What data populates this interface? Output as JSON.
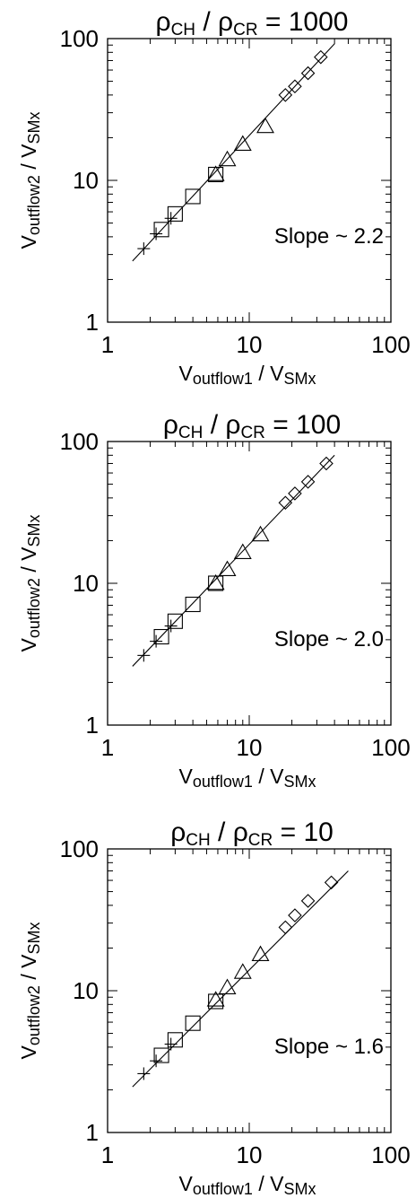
{
  "chart_data": [
    {
      "type": "scatter",
      "title": {
        "prefix": "ρ",
        "sub1": "CH",
        "mid": " / ρ",
        "sub2": "CR",
        "suffix": " = 1000"
      },
      "xlabel": {
        "main": "V",
        "sub1": "outflow1",
        "mid": "  / V",
        "sub2": "SMx"
      },
      "ylabel": {
        "main": "V",
        "sub1": "outflow2",
        "mid": " / V",
        "sub2": "SMx"
      },
      "x_scale": "log",
      "y_scale": "log",
      "xlim": [
        1,
        100
      ],
      "ylim": [
        1,
        100
      ],
      "x_ticks": [
        "1",
        "10",
        "100"
      ],
      "y_ticks": [
        "1",
        "10",
        "100"
      ],
      "annotation": "Slope ~ 2.2",
      "fit_line": {
        "x": [
          1.5,
          40
        ],
        "y": [
          2.7,
          92
        ]
      },
      "series": [
        {
          "marker": "plus",
          "x": [
            1.8,
            2.2,
            2.8
          ],
          "y": [
            3.3,
            4.2,
            5.4
          ]
        },
        {
          "marker": "square",
          "x": [
            2.4,
            3.0,
            4.0,
            5.8
          ],
          "y": [
            4.5,
            5.8,
            7.7,
            11.0
          ]
        },
        {
          "marker": "triangle",
          "x": [
            5.8,
            7.0,
            9.0,
            13.0
          ],
          "y": [
            11.0,
            14.0,
            18.0,
            24.0
          ]
        },
        {
          "marker": "diamond",
          "x": [
            18,
            21,
            26,
            32
          ],
          "y": [
            40,
            46,
            57,
            74
          ]
        }
      ]
    },
    {
      "type": "scatter",
      "title": {
        "prefix": "ρ",
        "sub1": "CH",
        "mid": " / ρ",
        "sub2": "CR",
        "suffix": " = 100"
      },
      "xlabel": {
        "main": "V",
        "sub1": "outflow1",
        "mid": "  / V",
        "sub2": "SMx"
      },
      "ylabel": {
        "main": "V",
        "sub1": "outflow2",
        "mid": " / V",
        "sub2": "SMx"
      },
      "x_scale": "log",
      "y_scale": "log",
      "xlim": [
        1,
        100
      ],
      "ylim": [
        1,
        100
      ],
      "x_ticks": [
        "1",
        "10",
        "100"
      ],
      "y_ticks": [
        "1",
        "10",
        "100"
      ],
      "annotation": "Slope ~ 2.0",
      "fit_line": {
        "x": [
          1.5,
          40
        ],
        "y": [
          2.6,
          80
        ]
      },
      "series": [
        {
          "marker": "plus",
          "x": [
            1.8,
            2.2,
            2.8
          ],
          "y": [
            3.1,
            3.9,
            5.0
          ]
        },
        {
          "marker": "square",
          "x": [
            2.4,
            3.0,
            4.0,
            5.8
          ],
          "y": [
            4.2,
            5.4,
            7.1,
            10.0
          ]
        },
        {
          "marker": "triangle",
          "x": [
            5.8,
            7.0,
            9.0,
            12.0
          ],
          "y": [
            10.0,
            12.5,
            16.5,
            22.0
          ]
        },
        {
          "marker": "diamond",
          "x": [
            18,
            21,
            26,
            35
          ],
          "y": [
            37,
            43,
            52,
            70
          ]
        }
      ]
    },
    {
      "type": "scatter",
      "title": {
        "prefix": "ρ",
        "sub1": "CH",
        "mid": " / ρ",
        "sub2": "CR",
        "suffix": " = 10"
      },
      "xlabel": {
        "main": "V",
        "sub1": "outflow1",
        "mid": "  / V",
        "sub2": "SMx"
      },
      "ylabel": {
        "main": "V",
        "sub1": "outflow2",
        "mid": " / V",
        "sub2": "SMx"
      },
      "x_scale": "log",
      "y_scale": "log",
      "xlim": [
        1,
        100
      ],
      "ylim": [
        1,
        100
      ],
      "x_ticks": [
        "1",
        "10",
        "100"
      ],
      "y_ticks": [
        "1",
        "10",
        "100"
      ],
      "annotation": "Slope ~ 1.6",
      "fit_line": {
        "x": [
          1.5,
          50
        ],
        "y": [
          2.1,
          70
        ]
      },
      "series": [
        {
          "marker": "plus",
          "x": [
            1.8,
            2.2,
            2.8
          ],
          "y": [
            2.6,
            3.2,
            4.2
          ]
        },
        {
          "marker": "square",
          "x": [
            2.4,
            3.0,
            4.0,
            5.8
          ],
          "y": [
            3.5,
            4.5,
            5.9,
            8.4
          ]
        },
        {
          "marker": "triangle",
          "x": [
            5.8,
            7.0,
            9.0,
            12.0
          ],
          "y": [
            8.6,
            10.5,
            13.5,
            18.0
          ]
        },
        {
          "marker": "diamond",
          "x": [
            18,
            21,
            26,
            38
          ],
          "y": [
            28,
            34,
            43,
            58
          ]
        }
      ]
    }
  ]
}
